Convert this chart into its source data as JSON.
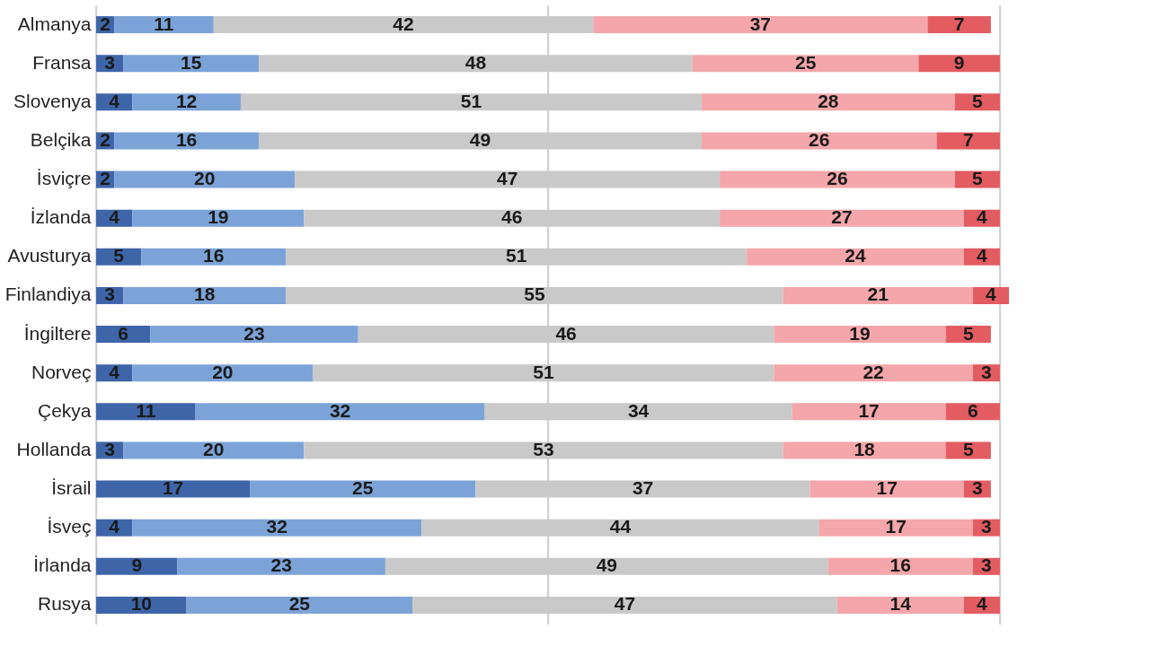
{
  "chart_data": {
    "type": "bar",
    "orientation": "horizontal",
    "stacked": true,
    "data_labels": true,
    "grid": "x",
    "tick_labels": "y",
    "legend": false,
    "categories": [
      "Almanya",
      "Fransa",
      "Slovenya",
      "Belçika",
      "İsviçre",
      "İzlanda",
      "Avusturya",
      "Finlandiya",
      "İngiltere",
      "Norveç",
      "Çekya",
      "Hollanda",
      "İsrail",
      "İsveç",
      "İrlanda",
      "Rusya"
    ],
    "xlim": [
      0,
      101
    ],
    "xticks": [
      {
        "value": 0,
        "label": null
      },
      {
        "value": 50,
        "label": null
      },
      {
        "value": 100,
        "label": null
      }
    ],
    "series": [
      {
        "color": "#3f65a9",
        "values": [
          2,
          3,
          4,
          2,
          2,
          4,
          5,
          3,
          6,
          4,
          11,
          3,
          17,
          4,
          9,
          10
        ]
      },
      {
        "color": "#7ca3d8",
        "values": [
          11,
          15,
          12,
          16,
          20,
          19,
          16,
          18,
          23,
          20,
          32,
          20,
          25,
          32,
          23,
          25
        ]
      },
      {
        "color": "#c9c9c9",
        "values": [
          42,
          48,
          51,
          49,
          47,
          46,
          51,
          55,
          46,
          51,
          34,
          53,
          37,
          44,
          49,
          47
        ]
      },
      {
        "color": "#f4a6aa",
        "values": [
          37,
          25,
          28,
          26,
          26,
          27,
          24,
          21,
          19,
          22,
          17,
          18,
          17,
          17,
          16,
          14
        ]
      },
      {
        "color": "#e25c61",
        "values": [
          7,
          9,
          5,
          7,
          5,
          4,
          4,
          4,
          5,
          3,
          6,
          5,
          3,
          3,
          3,
          4
        ]
      }
    ]
  }
}
